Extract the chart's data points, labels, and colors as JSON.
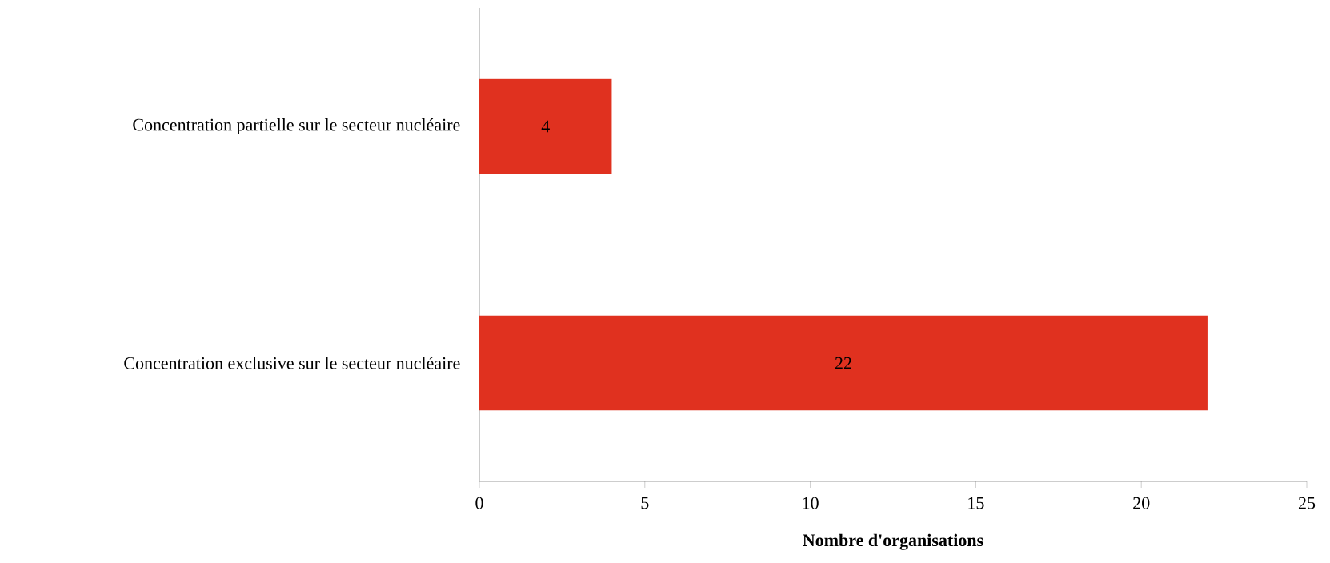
{
  "chart_data": {
    "type": "bar",
    "orientation": "horizontal",
    "categories": [
      "Concentration partielle sur le secteur nucléaire",
      "Concentration exclusive sur le secteur nucléaire"
    ],
    "values": [
      4,
      22
    ],
    "color": "#e0311f",
    "data_labels": true,
    "xlabel": "Nombre d'organisations",
    "xlim": [
      0,
      25
    ],
    "xticks": [
      0,
      5,
      10,
      15,
      20,
      25
    ]
  }
}
